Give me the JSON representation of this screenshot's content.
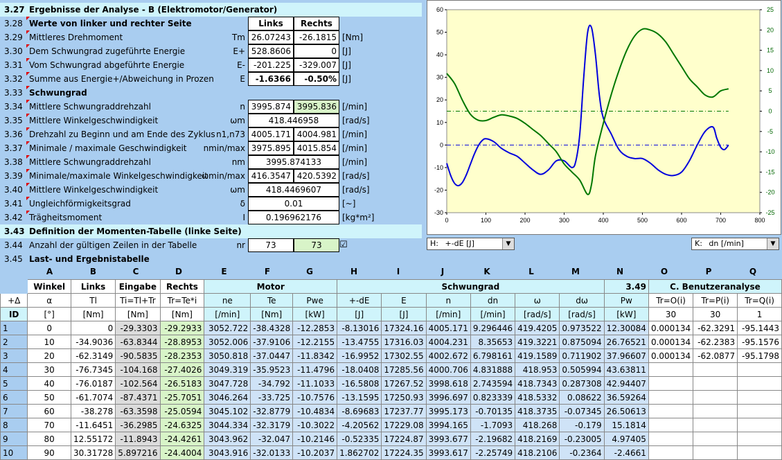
{
  "section_327": {
    "num": "3.27",
    "title": "Ergebnisse der Analyse - B (Elektromotor/Generator)"
  },
  "rows": [
    {
      "num": "3.28",
      "label": "Werte von linker und rechter Seite",
      "bold": true,
      "sym": "",
      "v1": "Links",
      "v2": "Rechts",
      "unit": ""
    },
    {
      "num": "3.29",
      "label": "Mittleres Drehmoment",
      "sym": "Tm",
      "v1": "26.07243",
      "v2": "-26.1815",
      "unit": "[Nm]"
    },
    {
      "num": "3.30",
      "label": "Dem Schwungrad zugeführte Energie",
      "sym": "E+",
      "v1": "528.8606",
      "v2": "0",
      "unit": "[J]"
    },
    {
      "num": "3.31",
      "label": "Vom Schwungrad abgeführte Energie",
      "sym": "E-",
      "v1": "-201.225",
      "v2": "-329.007",
      "unit": "[J]"
    },
    {
      "num": "3.32",
      "label": "Summe aus Energie+/Abweichung in Prozen",
      "sym": "E",
      "v1": "-1.6366",
      "v2": "-0.50%",
      "unit": "[J]"
    },
    {
      "num": "3.33",
      "label": "Schwungrad",
      "bold": true,
      "sym": "",
      "v1": "",
      "v2": "",
      "unit": ""
    },
    {
      "num": "3.34",
      "label": "Mittlere Schwungraddrehzahl",
      "sym": "n",
      "v1": "3995.874",
      "v2": "3995.836",
      "unit": "[/min]"
    },
    {
      "num": "3.35",
      "label": "Mittlere Winkelgeschwindigkeit",
      "sym": "ωm",
      "v1": "418.446958",
      "v2": "",
      "unit": "[rad/s]"
    },
    {
      "num": "3.36",
      "label": "Drehzahl zu Beginn und am Ende des Zyklus",
      "sym": "n1,n73",
      "v1": "4005.171",
      "v2": "4004.981",
      "unit": "[/min]"
    },
    {
      "num": "3.37",
      "label": "Minimale / maximale Geschwindigkeit",
      "sym": "nmin/max",
      "v1": "3975.895",
      "v2": "4015.854",
      "unit": "[/min]"
    },
    {
      "num": "3.38",
      "label": "Mittlere Schwungraddrehzahl",
      "sym": "nm",
      "v1": "3995.874133",
      "v2": "",
      "unit": "[/min]"
    },
    {
      "num": "3.39",
      "label": "Minimale/maximale Winkelgeschwindigkeit",
      "sym": "ωmin/max",
      "v1": "416.3547",
      "v2": "420.5392",
      "unit": "[rad/s]"
    },
    {
      "num": "3.40",
      "label": "Mittlere Winkelgeschwindigkeit",
      "sym": "ωm",
      "v1": "418.4469607",
      "v2": "",
      "unit": "[rad/s]"
    },
    {
      "num": "3.41",
      "label": "Ungleichförmigkeitsgrad",
      "sym": "δ",
      "v1": "0.01",
      "v2": "",
      "unit": "[~]"
    },
    {
      "num": "3.42",
      "label": "Trägheitsmoment",
      "sym": "I",
      "v1": "0.196962176",
      "v2": "",
      "unit": "[kg*m²]"
    }
  ],
  "section_343": {
    "num": "3.43",
    "title": "Definition der Momenten-Tabelle (linke Seite)"
  },
  "row_344": {
    "num": "3.44",
    "label": "Anzahl der gültigen Zeilen in der Tabelle",
    "sym": "nr",
    "v1": "73",
    "v2": "73",
    "checked": "☑"
  },
  "row_345": {
    "num": "3.45",
    "label": "Last- und Ergebnistabelle"
  },
  "dropdown_h": {
    "prefix": "H:",
    "value": "+-dE [J]"
  },
  "dropdown_k": {
    "prefix": "K:",
    "value": "dn [/min]"
  },
  "table": {
    "col_letters": [
      "A",
      "B",
      "C",
      "D",
      "E",
      "F",
      "G",
      "H",
      "I",
      "J",
      "K",
      "L",
      "M",
      "N",
      "O",
      "P",
      "Q"
    ],
    "group_row": [
      "Winkel",
      "Links",
      "Eingabe",
      "Rechts",
      "Motor",
      "Schwungrad",
      "3.49",
      "C. Benutzeranalyse"
    ],
    "sym_row": [
      "+Δ",
      "α",
      "Tl",
      "Ti=Tl+Tr",
      "Tr=Te*i",
      "ne",
      "Te",
      "Pwe",
      "+-dE",
      "E",
      "n",
      "dn",
      "ω",
      "dω",
      "Pw",
      "Tr=O(i)",
      "Tr=P(i)",
      "Tr=Q(i)"
    ],
    "unit_row": [
      "ID",
      "[°]",
      "[Nm]",
      "[Nm]",
      "[Nm]",
      "[/min]",
      "[Nm]",
      "[kW]",
      "[J]",
      "[J]",
      "[/min]",
      "[/min]",
      "[rad/s]",
      "[rad/s]",
      "[kW]",
      "30",
      "30",
      "1"
    ],
    "data": [
      [
        "1",
        "0",
        "0",
        "-29.3303",
        "-29.2933",
        "3052.722",
        "-38.4328",
        "-12.2853",
        "-8.13016",
        "17324.16",
        "4005.171",
        "9.296446",
        "419.4205",
        "0.973522",
        "12.30084",
        "0.000134",
        "-62.3291",
        "-95.1443"
      ],
      [
        "2",
        "10",
        "-34.9036",
        "-63.8344",
        "-28.8953",
        "3052.006",
        "-37.9106",
        "-12.2155",
        "-13.4755",
        "17316.03",
        "4004.231",
        "8.35653",
        "419.3221",
        "0.875094",
        "26.76521",
        "0.000134",
        "-62.2383",
        "-95.1576"
      ],
      [
        "3",
        "20",
        "-62.3149",
        "-90.5835",
        "-28.2353",
        "3050.818",
        "-37.0447",
        "-11.8342",
        "-16.9952",
        "17302.55",
        "4002.672",
        "6.798161",
        "419.1589",
        "0.711902",
        "37.96607",
        "0.000134",
        "-62.0877",
        "-95.1798"
      ],
      [
        "4",
        "30",
        "-76.7345",
        "-104.168",
        "-27.4026",
        "3049.319",
        "-35.9523",
        "-11.4796",
        "-18.0408",
        "17285.56",
        "4000.706",
        "4.831888",
        "418.953",
        "0.505994",
        "43.63811",
        "",
        "",
        ""
      ],
      [
        "5",
        "40",
        "-76.0187",
        "-102.564",
        "-26.5183",
        "3047.728",
        "-34.792",
        "-11.1033",
        "-16.5808",
        "17267.52",
        "3998.618",
        "2.743594",
        "418.7343",
        "0.287308",
        "42.94407",
        "",
        "",
        ""
      ],
      [
        "6",
        "50",
        "-61.7074",
        "-87.4371",
        "-25.7051",
        "3046.264",
        "-33.725",
        "-10.7576",
        "-13.1595",
        "17250.93",
        "3996.697",
        "0.823339",
        "418.5332",
        "0.08622",
        "36.59264",
        "",
        "",
        ""
      ],
      [
        "7",
        "60",
        "-38.278",
        "-63.3598",
        "-25.0594",
        "3045.102",
        "-32.8779",
        "-10.4834",
        "-8.69683",
        "17237.77",
        "3995.173",
        "-0.70135",
        "418.3735",
        "-0.07345",
        "26.50613",
        "",
        "",
        ""
      ],
      [
        "8",
        "70",
        "-11.6451",
        "-36.2985",
        "-24.6325",
        "3044.334",
        "-32.3179",
        "-10.3022",
        "-4.20562",
        "17229.08",
        "3994.165",
        "-1.7093",
        "418.268",
        "-0.179",
        "15.1814",
        "",
        "",
        ""
      ],
      [
        "9",
        "80",
        "12.55172",
        "-11.8943",
        "-24.4261",
        "3043.962",
        "-32.047",
        "-10.2146",
        "-0.52335",
        "17224.87",
        "3993.677",
        "-2.19682",
        "418.2169",
        "-0.23005",
        "4.97405",
        "",
        "",
        ""
      ],
      [
        "10",
        "90",
        "30.31728",
        "5.897216",
        "-24.4004",
        "3043.916",
        "-32.0133",
        "-10.2037",
        "1.862702",
        "17224.35",
        "3993.617",
        "-2.25749",
        "418.2106",
        "-0.2364",
        "-2.4661",
        "",
        "",
        ""
      ]
    ]
  },
  "chart_data": {
    "type": "line",
    "title": "",
    "xlabel": "",
    "ylabel": "",
    "xlim": [
      0,
      800
    ],
    "ylim": [
      -30,
      60
    ],
    "y2lim": [
      -25,
      25
    ],
    "x_ticks": [
      "0",
      "100",
      "200",
      "300",
      "400",
      "500",
      "600",
      "700",
      "800"
    ],
    "y_ticks": [
      "-30",
      "-20",
      "-10",
      "0",
      "10",
      "20",
      "30",
      "40",
      "50",
      "60"
    ],
    "y2_ticks": [
      "-25",
      "-20",
      "-15",
      "-10",
      "-5",
      "0",
      "5",
      "10",
      "15",
      "20",
      "25"
    ],
    "grid": false,
    "background": "#ffffcc",
    "series": [
      {
        "color": "#0000dd",
        "axis": "left",
        "x": [
          0,
          10,
          20,
          30,
          40,
          50,
          60,
          70,
          80,
          90,
          100,
          120,
          140,
          160,
          180,
          200,
          220,
          240,
          260,
          280,
          300,
          320,
          330,
          340,
          350,
          360,
          370,
          380,
          390,
          400,
          420,
          440,
          460,
          480,
          500,
          520,
          540,
          560,
          580,
          600,
          620,
          640,
          660,
          680,
          690,
          700,
          710,
          720
        ],
        "y": [
          -8.1,
          -13.5,
          -17,
          -18,
          -16.6,
          -13.2,
          -8.7,
          -4.2,
          -0.5,
          1.9,
          2.8,
          1.5,
          -1.5,
          -3.5,
          -5,
          -8,
          -11,
          -13,
          -11,
          -7,
          -7,
          -10,
          -7,
          5,
          30,
          50,
          52,
          40,
          22,
          12,
          5,
          -2,
          -5,
          -6,
          -6,
          -8,
          -11,
          -13,
          -13.5,
          -12,
          -7,
          0,
          6,
          8,
          3,
          -1,
          -2,
          0
        ]
      },
      {
        "color": "#007700",
        "axis": "right",
        "x": [
          0,
          20,
          40,
          60,
          80,
          100,
          120,
          140,
          160,
          180,
          200,
          220,
          240,
          260,
          280,
          300,
          320,
          340,
          360,
          370,
          380,
          400,
          420,
          440,
          460,
          480,
          500,
          520,
          540,
          560,
          580,
          600,
          620,
          640,
          660,
          680,
          700,
          720
        ],
        "y": [
          9.3,
          6.8,
          2.7,
          -0.7,
          -2.2,
          -2.3,
          -1.5,
          -0.9,
          -1.2,
          -1.8,
          -3,
          -4.5,
          -6,
          -8,
          -10,
          -13,
          -15,
          -17,
          -20.5,
          -18,
          -11,
          -3,
          4,
          10,
          15,
          18.5,
          20.2,
          20,
          19,
          17,
          14,
          11,
          8,
          6,
          4,
          3.5,
          5,
          5.5
        ]
      }
    ],
    "ref_lines": [
      {
        "axis": "left",
        "y": 0,
        "color": "#0000dd"
      },
      {
        "axis": "right",
        "y": 0,
        "color": "#007700"
      }
    ]
  }
}
